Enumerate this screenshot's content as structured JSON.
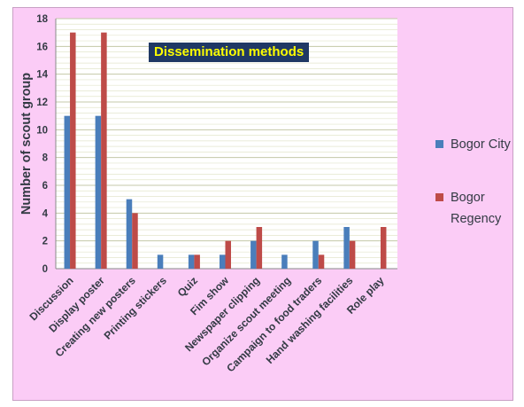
{
  "chart_data": {
    "type": "bar",
    "title": "Dissemination methods",
    "ylabel": "Number of scout group",
    "xlabel": "",
    "ylim": [
      0,
      18
    ],
    "yticks": [
      0,
      2,
      4,
      6,
      8,
      10,
      12,
      14,
      16,
      18
    ],
    "grid": true,
    "legend_position": "right",
    "categories": [
      "Discussion",
      "Display poster",
      "Creating new posters",
      "Printing stickers",
      "Quiz",
      "Fim show",
      "Newspaper clipping",
      "Organize scout meeting",
      "Campaign to food traders",
      "Hand washing facilities",
      "Role play"
    ],
    "series": [
      {
        "name": "Bogor City",
        "color": "#4a7ebb",
        "values": [
          11,
          11,
          5,
          1,
          1,
          1,
          2,
          1,
          2,
          3,
          0
        ]
      },
      {
        "name": "Bogor Regency",
        "color": "#be4b48",
        "values": [
          17,
          17,
          4,
          0,
          1,
          2,
          3,
          0,
          1,
          2,
          3
        ]
      }
    ]
  },
  "legend": {
    "series1_line1": "Bogor City",
    "series2_line1": "Bogor",
    "series2_line2": "Regency"
  }
}
